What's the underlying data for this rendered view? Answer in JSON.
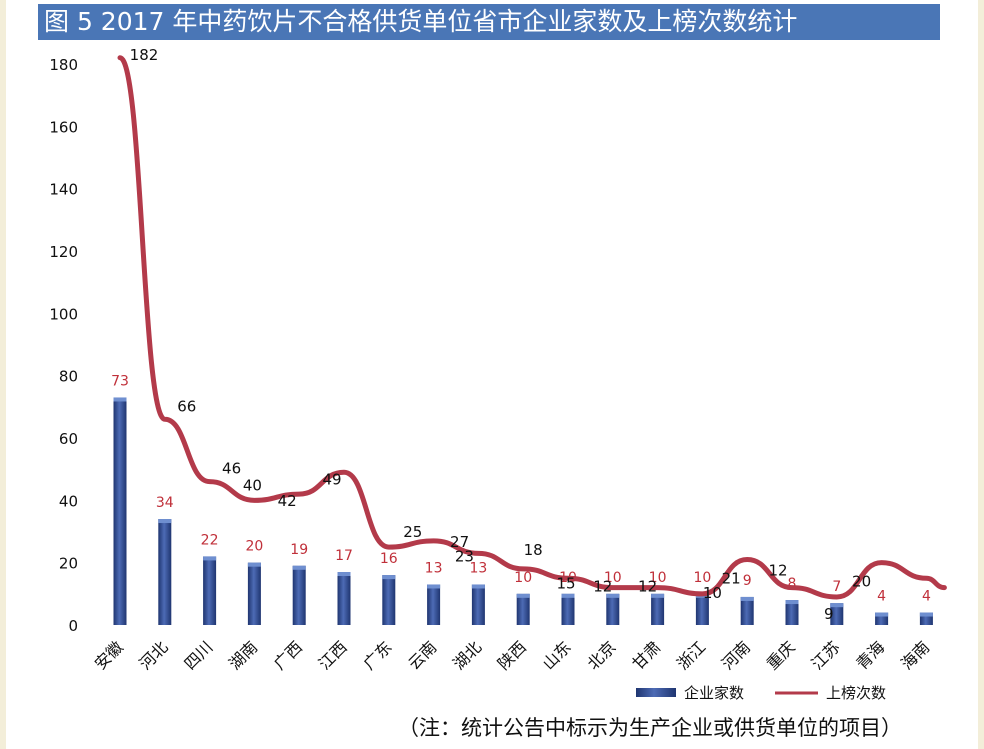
{
  "title": "图 5  2017 年中药饮片不合格供货单位省市企业家数及上榜次数统计",
  "footnote": "（注：统计公告中标示为生产企业或供货单位的项目）",
  "colors": {
    "title_bg": "#4a76b6",
    "bar": "#2f4a8f",
    "bar_label": "#c0303a",
    "line": "#b33a4a",
    "line_label": "#111111"
  },
  "chart_data": {
    "type": "bar",
    "categories": [
      "安徽",
      "河北",
      "四川",
      "湖南",
      "广西",
      "江西",
      "广东",
      "云南",
      "湖北",
      "陕西",
      "山东",
      "北京",
      "甘肃",
      "浙江",
      "河南",
      "重庆",
      "江苏",
      "青海",
      "海南"
    ],
    "ylim": [
      0,
      180
    ],
    "yticks": [
      0,
      20,
      40,
      60,
      80,
      100,
      120,
      140,
      160,
      180
    ],
    "grid": false,
    "legend_position": "bottom-right",
    "series": [
      {
        "name": "企业家数",
        "type": "bar",
        "values": [
          73,
          34,
          22,
          20,
          19,
          17,
          16,
          13,
          13,
          10,
          10,
          10,
          10,
          10,
          9,
          8,
          7,
          4,
          4
        ]
      },
      {
        "name": "上榜次数",
        "type": "line",
        "values": [
          182,
          66,
          46,
          40,
          42,
          49,
          25,
          27,
          23,
          18,
          15,
          12,
          12,
          10,
          21,
          12,
          9,
          20,
          15
        ],
        "labels": [
          "182",
          "66",
          "46",
          "40",
          "42",
          "49",
          "25",
          "27",
          "23",
          "18",
          "15",
          "12",
          "12",
          "10",
          "21",
          "12",
          "9",
          "20",
          ""
        ]
      }
    ]
  }
}
